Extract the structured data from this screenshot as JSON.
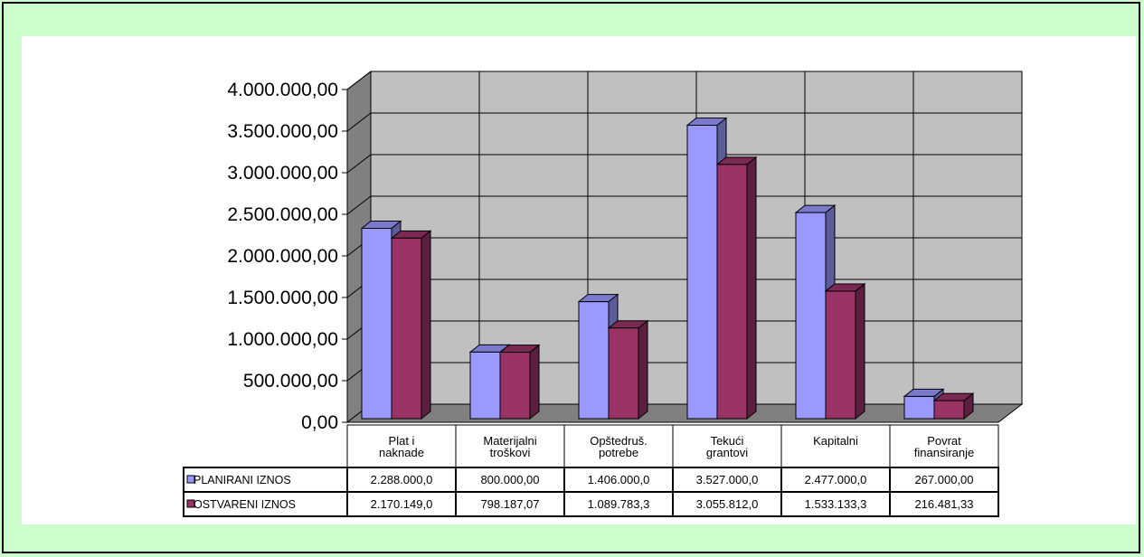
{
  "chart_data": {
    "type": "bar",
    "categories": [
      [
        "Plat i",
        "naknade"
      ],
      [
        "Materijalni",
        "troškovi"
      ],
      [
        "Opštedruš.",
        "potrebe"
      ],
      [
        "Tekući",
        "grantovi"
      ],
      [
        "Kapitalni"
      ],
      [
        "Povrat",
        "finansiranje"
      ]
    ],
    "series": [
      {
        "name": "PLANIRANI IZNOS",
        "color": "#9999ff",
        "values": [
          2288000,
          800000,
          1406000,
          3527000,
          2477000,
          267000
        ],
        "labels": [
          "2.288.000,0",
          "800.000,00",
          "1.406.000,0",
          "3.527.000,0",
          "2.477.000,0",
          "267.000,00"
        ]
      },
      {
        "name": "OSTVARENI IZNOS",
        "color": "#993366",
        "values": [
          2170149,
          798187.07,
          1089783.3,
          3055812,
          1533133.3,
          216481.33
        ],
        "labels": [
          "2.170.149,0",
          "798.187,07",
          "1.089.783,3",
          "3.055.812,0",
          "1.533.133,3",
          "216.481,33"
        ]
      }
    ],
    "ylim": [
      0,
      4000000
    ],
    "yticks": [
      {
        "value": 0,
        "label": "0,00"
      },
      {
        "value": 500000,
        "label": "500.000,00"
      },
      {
        "value": 1000000,
        "label": "1.000.000,00"
      },
      {
        "value": 1500000,
        "label": "1.500.000,00"
      },
      {
        "value": 2000000,
        "label": "2.000.000,00"
      },
      {
        "value": 2500000,
        "label": "2.500.000,00"
      },
      {
        "value": 3000000,
        "label": "3.000.000,00"
      },
      {
        "value": 3500000,
        "label": "3.500.000,00"
      },
      {
        "value": 4000000,
        "label": "4.000.000,00"
      }
    ],
    "grid": true,
    "legend": "data-table",
    "title": "",
    "xlabel": "",
    "ylabel": ""
  }
}
